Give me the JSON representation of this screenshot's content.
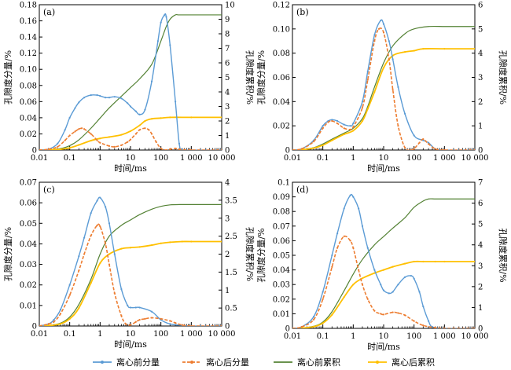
{
  "chart_data": [
    {
      "type": "line",
      "panel_label": "(a)",
      "xlabel": "时间/ms",
      "ylabel_left": "孔隙度分量/%",
      "ylabel_right": "孔隙度累积/%",
      "x_scale": "log",
      "xlim": [
        0.01,
        10000
      ],
      "x_ticks": [
        0.01,
        0.1,
        1,
        10,
        100,
        1000,
        10000
      ],
      "x_tick_labels": [
        "0.01",
        "0.1",
        "1",
        "10",
        "100",
        "1 000",
        "10 000"
      ],
      "ylim_left": [
        0,
        0.18
      ],
      "ylim_right": [
        0,
        10
      ],
      "left_ticks": [
        0,
        0.02,
        0.04,
        0.06,
        0.08,
        0.1,
        0.12,
        0.14,
        0.16,
        0.18
      ],
      "left_tick_labels": [
        "0",
        "0.02",
        "0.04",
        "0.06",
        "0.08",
        "0.10",
        "0.12",
        "0.14",
        "0.16",
        "0.18"
      ],
      "right_ticks": [
        0,
        1,
        2,
        3,
        4,
        5,
        6,
        7,
        8,
        9,
        10
      ],
      "right_tick_labels": [
        "0",
        "1",
        "2",
        "3",
        "4",
        "5",
        "6",
        "7",
        "8",
        "9",
        "10"
      ],
      "series": [
        {
          "name": "离心前分量",
          "axis": "left",
          "x": [
            0.01,
            0.02,
            0.04,
            0.07,
            0.1,
            0.15,
            0.2,
            0.3,
            0.5,
            0.8,
            1,
            1.5,
            2,
            3,
            5,
            8,
            10,
            15,
            20,
            30,
            50,
            80,
            100,
            130,
            150,
            200,
            300,
            400,
            500,
            1000,
            10000
          ],
          "y": [
            0,
            0.001,
            0.008,
            0.025,
            0.04,
            0.052,
            0.059,
            0.065,
            0.068,
            0.068,
            0.067,
            0.065,
            0.065,
            0.066,
            0.064,
            0.058,
            0.054,
            0.048,
            0.044,
            0.05,
            0.085,
            0.135,
            0.158,
            0.167,
            0.165,
            0.13,
            0.06,
            0.008,
            0.001,
            0,
            0
          ]
        },
        {
          "name": "离心后分量",
          "axis": "left",
          "x": [
            0.01,
            0.02,
            0.04,
            0.07,
            0.1,
            0.15,
            0.2,
            0.25,
            0.3,
            0.5,
            0.8,
            1,
            2,
            3,
            5,
            8,
            10,
            15,
            20,
            30,
            40,
            50,
            70,
            100,
            150,
            200,
            300,
            400,
            1000,
            10000
          ],
          "y": [
            0,
            0.001,
            0.004,
            0.012,
            0.018,
            0.023,
            0.026,
            0.027,
            0.026,
            0.02,
            0.012,
            0.009,
            0.005,
            0.004,
            0.006,
            0.01,
            0.013,
            0.02,
            0.025,
            0.027,
            0.025,
            0.02,
            0.01,
            0.002,
            0,
            0.001,
            0.002,
            0.001,
            0,
            0
          ]
        },
        {
          "name": "离心前累积",
          "axis": "right",
          "x": [
            0.01,
            0.02,
            0.05,
            0.1,
            0.2,
            0.5,
            1,
            2,
            5,
            10,
            20,
            50,
            100,
            150,
            200,
            300,
            400,
            1000,
            10000
          ],
          "y": [
            0,
            0.02,
            0.1,
            0.3,
            0.7,
            1.5,
            2.2,
            2.9,
            3.7,
            4.3,
            4.9,
            5.9,
            7.5,
            8.5,
            9.0,
            9.3,
            9.3,
            9.3,
            9.3
          ]
        },
        {
          "name": "离心后累积",
          "axis": "right",
          "x": [
            0.01,
            0.02,
            0.05,
            0.1,
            0.2,
            0.5,
            1,
            2,
            5,
            10,
            20,
            30,
            50,
            100,
            200,
            1000,
            10000
          ],
          "y": [
            0,
            0.01,
            0.05,
            0.15,
            0.35,
            0.65,
            0.8,
            0.9,
            1.05,
            1.3,
            1.7,
            2.0,
            2.15,
            2.2,
            2.25,
            2.25,
            2.25
          ]
        }
      ]
    },
    {
      "type": "line",
      "panel_label": "(b)",
      "xlabel": "时间/ms",
      "ylabel_left": "孔隙度分量/%",
      "ylabel_right": "孔隙度累积/%",
      "x_scale": "log",
      "xlim": [
        0.01,
        10000
      ],
      "x_ticks": [
        0.01,
        0.1,
        1,
        10,
        100,
        1000,
        10000
      ],
      "x_tick_labels": [
        "0.01",
        "0.1",
        "1",
        "10",
        "100",
        "1 000",
        "10 000"
      ],
      "ylim_left": [
        0,
        0.12
      ],
      "ylim_right": [
        0,
        6
      ],
      "left_ticks": [
        0,
        0.02,
        0.04,
        0.06,
        0.08,
        0.1,
        0.12
      ],
      "left_tick_labels": [
        "0",
        "0.02",
        "0.04",
        "0.06",
        "0.08",
        "0.10",
        "0.12"
      ],
      "right_ticks": [
        0,
        1,
        2,
        3,
        4,
        5,
        6
      ],
      "right_tick_labels": [
        "0",
        "1",
        "2",
        "3",
        "4",
        "5",
        "6"
      ],
      "series": [
        {
          "name": "离心前分量",
          "axis": "left",
          "x": [
            0.01,
            0.02,
            0.05,
            0.1,
            0.15,
            0.2,
            0.3,
            0.5,
            0.8,
            1,
            2,
            3,
            5,
            8,
            10,
            15,
            20,
            30,
            50,
            100,
            200,
            300,
            500,
            1000,
            10000
          ],
          "y": [
            0,
            0.001,
            0.008,
            0.02,
            0.024,
            0.025,
            0.024,
            0.021,
            0.02,
            0.022,
            0.04,
            0.065,
            0.095,
            0.107,
            0.104,
            0.09,
            0.075,
            0.052,
            0.03,
            0.012,
            0.008,
            0.006,
            0.001,
            0,
            0
          ]
        },
        {
          "name": "离心后分量",
          "axis": "left",
          "x": [
            0.01,
            0.02,
            0.05,
            0.1,
            0.15,
            0.2,
            0.3,
            0.5,
            0.8,
            1,
            2,
            3,
            5,
            7,
            10,
            15,
            20,
            30,
            50,
            80,
            100,
            150,
            200,
            300,
            500,
            1000,
            10000
          ],
          "y": [
            0,
            0.001,
            0.007,
            0.018,
            0.023,
            0.024,
            0.022,
            0.018,
            0.017,
            0.019,
            0.035,
            0.058,
            0.09,
            0.1,
            0.097,
            0.075,
            0.05,
            0.02,
            0.002,
            0,
            0.001,
            0.006,
            0.009,
            0.005,
            0.001,
            0,
            0
          ]
        },
        {
          "name": "离心前累积",
          "axis": "right",
          "x": [
            0.01,
            0.02,
            0.05,
            0.1,
            0.2,
            0.5,
            1,
            2,
            3,
            5,
            10,
            20,
            50,
            100,
            300,
            1000,
            3000,
            10000
          ],
          "y": [
            0,
            0.02,
            0.1,
            0.25,
            0.45,
            0.7,
            0.9,
            1.3,
            1.8,
            2.6,
            3.6,
            4.3,
            4.8,
            5.0,
            5.1,
            5.1,
            5.1,
            5.1
          ]
        },
        {
          "name": "离心后累积",
          "axis": "right",
          "x": [
            0.01,
            0.02,
            0.05,
            0.1,
            0.2,
            0.5,
            1,
            2,
            3,
            5,
            10,
            20,
            50,
            100,
            200,
            1000,
            10000
          ],
          "y": [
            0,
            0.01,
            0.08,
            0.2,
            0.4,
            0.65,
            0.8,
            1.2,
            1.7,
            2.4,
            3.4,
            3.9,
            4.05,
            4.1,
            4.18,
            4.18,
            4.18
          ]
        }
      ]
    },
    {
      "type": "line",
      "panel_label": "(c)",
      "xlabel": "时间/ms",
      "ylabel_left": "孔隙度分量/%",
      "ylabel_right": "孔隙度累积/%",
      "x_scale": "log",
      "xlim": [
        0.01,
        10000
      ],
      "x_ticks": [
        0.01,
        0.1,
        1,
        10,
        100,
        1000,
        10000
      ],
      "x_tick_labels": [
        "0.01",
        "0.1",
        "1",
        "10",
        "100",
        "1 000",
        "10 000"
      ],
      "ylim_left": [
        0,
        0.07
      ],
      "ylim_right": [
        0,
        4
      ],
      "left_ticks": [
        0,
        0.01,
        0.02,
        0.03,
        0.04,
        0.05,
        0.06,
        0.07
      ],
      "left_tick_labels": [
        "0",
        "0.01",
        "0.02",
        "0.03",
        "0.04",
        "0.05",
        "0.06",
        "0.07"
      ],
      "right_ticks": [
        0,
        0.5,
        1,
        1.5,
        2,
        2.5,
        3,
        3.5,
        4
      ],
      "right_tick_labels": [
        "0",
        "0.5",
        "1",
        "1.5",
        "2",
        "2.5",
        "3",
        "3.5",
        "4"
      ],
      "series": [
        {
          "name": "离心前分量",
          "axis": "left",
          "x": [
            0.01,
            0.02,
            0.03,
            0.05,
            0.1,
            0.2,
            0.3,
            0.5,
            0.8,
            1,
            1.5,
            2,
            3,
            5,
            8,
            10,
            15,
            20,
            50,
            100,
            200,
            500,
            1000,
            10000
          ],
          "y": [
            0,
            0.001,
            0.003,
            0.008,
            0.02,
            0.034,
            0.043,
            0.055,
            0.061,
            0.0625,
            0.058,
            0.05,
            0.035,
            0.018,
            0.01,
            0.009,
            0.009,
            0.009,
            0.007,
            0.003,
            0.001,
            0.0003,
            0,
            0
          ]
        },
        {
          "name": "离心后分量",
          "axis": "left",
          "x": [
            0.01,
            0.02,
            0.03,
            0.05,
            0.1,
            0.2,
            0.3,
            0.5,
            0.8,
            1,
            1.5,
            2,
            3,
            5,
            7,
            10,
            15,
            20,
            30,
            50,
            100,
            200,
            300,
            500,
            1000,
            10000
          ],
          "y": [
            0,
            0.001,
            0.002,
            0.006,
            0.015,
            0.027,
            0.035,
            0.044,
            0.049,
            0.0485,
            0.04,
            0.03,
            0.016,
            0.005,
            0.001,
            0.0005,
            0.002,
            0.003,
            0.0035,
            0.004,
            0.0035,
            0.0025,
            0.0015,
            0.0005,
            0,
            0
          ]
        },
        {
          "name": "离心前累积",
          "axis": "right",
          "x": [
            0.01,
            0.02,
            0.05,
            0.1,
            0.2,
            0.5,
            1,
            2,
            5,
            10,
            20,
            50,
            100,
            200,
            500,
            1000,
            3000,
            10000
          ],
          "y": [
            0,
            0.01,
            0.08,
            0.25,
            0.6,
            1.3,
            2.0,
            2.5,
            2.8,
            2.95,
            3.1,
            3.25,
            3.33,
            3.37,
            3.38,
            3.38,
            3.38,
            3.38
          ]
        },
        {
          "name": "离心后累积",
          "axis": "right",
          "x": [
            0.01,
            0.02,
            0.05,
            0.1,
            0.2,
            0.5,
            1,
            2,
            5,
            10,
            20,
            50,
            100,
            200,
            500,
            1000,
            10000
          ],
          "y": [
            0,
            0.01,
            0.06,
            0.2,
            0.5,
            1.2,
            1.75,
            2.0,
            2.15,
            2.18,
            2.2,
            2.25,
            2.3,
            2.33,
            2.35,
            2.35,
            2.35
          ]
        }
      ]
    },
    {
      "type": "line",
      "panel_label": "(d)",
      "xlabel": "时间/ms",
      "ylabel_left": "孔隙度分量/%",
      "ylabel_right": "孔隙度累积/%",
      "x_scale": "log",
      "xlim": [
        0.01,
        10000
      ],
      "x_ticks": [
        0.01,
        0.1,
        1,
        10,
        100,
        1000,
        10000
      ],
      "x_tick_labels": [
        "0.01",
        "0.1",
        "1",
        "10",
        "100",
        "1 000",
        "10 000"
      ],
      "ylim_left": [
        0,
        0.1
      ],
      "ylim_right": [
        0,
        7
      ],
      "left_ticks": [
        0,
        0.01,
        0.02,
        0.03,
        0.04,
        0.05,
        0.06,
        0.07,
        0.08,
        0.09,
        0.1
      ],
      "left_tick_labels": [
        "0",
        "0.01",
        "0.02",
        "0.03",
        "0.04",
        "0.05",
        "0.06",
        "0.07",
        "0.08",
        "0.09",
        "0.1"
      ],
      "right_ticks": [
        0,
        1,
        2,
        3,
        4,
        5,
        6,
        7
      ],
      "right_tick_labels": [
        "0",
        "1",
        "2",
        "3",
        "4",
        "5",
        "6",
        "7"
      ],
      "series": [
        {
          "name": "离心前分量",
          "axis": "left",
          "x": [
            0.01,
            0.02,
            0.05,
            0.1,
            0.2,
            0.3,
            0.5,
            0.8,
            1,
            1.5,
            2,
            3,
            5,
            8,
            10,
            15,
            20,
            30,
            50,
            80,
            100,
            150,
            200,
            300,
            400,
            1000,
            10000
          ],
          "y": [
            0,
            0.001,
            0.008,
            0.025,
            0.05,
            0.065,
            0.082,
            0.091,
            0.09,
            0.082,
            0.07,
            0.055,
            0.04,
            0.03,
            0.026,
            0.024,
            0.025,
            0.03,
            0.035,
            0.036,
            0.034,
            0.025,
            0.015,
            0.005,
            0.001,
            0,
            0
          ]
        },
        {
          "name": "离心后分量",
          "axis": "left",
          "x": [
            0.01,
            0.02,
            0.05,
            0.1,
            0.2,
            0.3,
            0.5,
            0.8,
            1,
            1.5,
            2,
            3,
            5,
            8,
            10,
            20,
            30,
            50,
            100,
            200,
            500,
            1000,
            10000
          ],
          "y": [
            0,
            0.001,
            0.006,
            0.02,
            0.042,
            0.055,
            0.063,
            0.06,
            0.055,
            0.04,
            0.03,
            0.02,
            0.012,
            0.01,
            0.0095,
            0.011,
            0.0105,
            0.009,
            0.005,
            0.002,
            0.0005,
            0,
            0
          ]
        },
        {
          "name": "离心前累积",
          "axis": "right",
          "x": [
            0.01,
            0.02,
            0.05,
            0.1,
            0.2,
            0.5,
            1,
            2,
            5,
            10,
            20,
            50,
            100,
            200,
            300,
            500,
            1000,
            3000,
            10000
          ],
          "y": [
            0,
            0.02,
            0.1,
            0.3,
            0.8,
            1.8,
            2.6,
            3.3,
            4.0,
            4.4,
            4.8,
            5.3,
            5.8,
            6.1,
            6.2,
            6.2,
            6.2,
            6.2,
            6.2
          ]
        },
        {
          "name": "离心后累积",
          "axis": "right",
          "x": [
            0.01,
            0.02,
            0.05,
            0.1,
            0.2,
            0.5,
            1,
            2,
            5,
            10,
            20,
            50,
            100,
            200,
            500,
            1000,
            10000
          ],
          "y": [
            0,
            0.01,
            0.08,
            0.25,
            0.65,
            1.5,
            2.1,
            2.4,
            2.65,
            2.8,
            2.95,
            3.1,
            3.2,
            3.2,
            3.2,
            3.2,
            3.2
          ]
        }
      ]
    }
  ],
  "legend": {
    "items": [
      {
        "label": "离心前分量",
        "color": "#5b9bd5",
        "marker": "dot"
      },
      {
        "label": "离心后分量",
        "color": "#ed7d31",
        "marker": "dot"
      },
      {
        "label": "离心前累积",
        "color": "#548235",
        "marker": "none"
      },
      {
        "label": "离心后累积",
        "color": "#ffc000",
        "marker": "dot"
      }
    ]
  },
  "series_colors": [
    "#5b9bd5",
    "#ed7d31",
    "#548235",
    "#ffc000"
  ]
}
